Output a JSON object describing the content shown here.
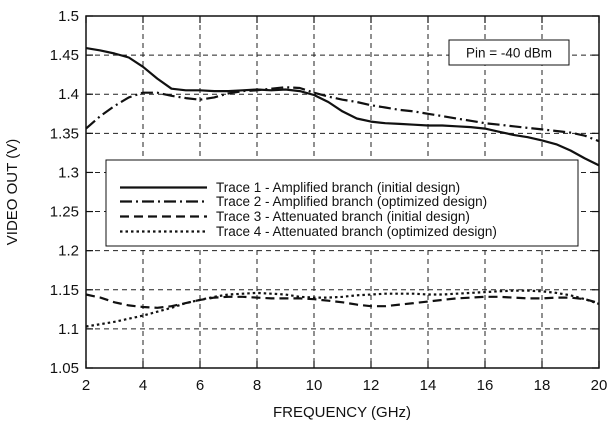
{
  "chart_data": {
    "type": "line",
    "title": "",
    "xlabel": "FREQUENCY (GHz)",
    "ylabel": "VIDEO OUT (V)",
    "xlim": [
      2,
      20
    ],
    "ylim": [
      1.05,
      1.5
    ],
    "xticks": [
      2,
      4,
      6,
      8,
      10,
      12,
      14,
      16,
      18,
      20
    ],
    "yticks": [
      1.05,
      1.1,
      1.15,
      1.2,
      1.25,
      1.3,
      1.35,
      1.4,
      1.45,
      1.5
    ],
    "ytick_labels": [
      "1.05",
      "1.1",
      "1.15",
      "1.2",
      "1.25",
      "1.3",
      "1.35",
      "1.4",
      "1.45",
      "1.5"
    ],
    "grid": "dashed",
    "legend_position": "center-left",
    "annotation": "Pin = -40 dBm",
    "series": [
      {
        "name": "Trace 1 - Amplified branch (initial design)",
        "style": "solid",
        "x": [
          2.0,
          2.5,
          3.0,
          3.5,
          4.0,
          4.5,
          5.0,
          5.5,
          6.0,
          6.5,
          7.0,
          7.5,
          8.0,
          8.5,
          9.0,
          9.5,
          10.0,
          10.5,
          11.0,
          11.5,
          12.0,
          12.5,
          13.0,
          13.5,
          14.0,
          14.5,
          15.0,
          15.5,
          16.0,
          16.5,
          17.0,
          17.5,
          18.0,
          18.5,
          19.0,
          19.5,
          20.0
        ],
        "y": [
          1.459,
          1.456,
          1.452,
          1.447,
          1.435,
          1.42,
          1.407,
          1.405,
          1.405,
          1.404,
          1.404,
          1.405,
          1.406,
          1.405,
          1.406,
          1.404,
          1.399,
          1.39,
          1.378,
          1.369,
          1.365,
          1.363,
          1.362,
          1.361,
          1.36,
          1.36,
          1.359,
          1.358,
          1.356,
          1.352,
          1.348,
          1.345,
          1.341,
          1.336,
          1.328,
          1.318,
          1.309
        ]
      },
      {
        "name": "Trace 2 - Amplified branch (optimized design)",
        "style": "dashdot",
        "x": [
          2.0,
          2.5,
          3.0,
          3.5,
          4.0,
          4.5,
          5.0,
          5.5,
          6.0,
          6.5,
          7.0,
          7.5,
          8.0,
          8.5,
          9.0,
          9.5,
          10.0,
          10.5,
          11.0,
          11.5,
          12.0,
          12.5,
          13.0,
          13.5,
          14.0,
          14.5,
          15.0,
          15.5,
          16.0,
          16.5,
          17.0,
          17.5,
          18.0,
          18.5,
          19.0,
          19.5,
          20.0
        ],
        "y": [
          1.356,
          1.372,
          1.385,
          1.396,
          1.402,
          1.402,
          1.398,
          1.395,
          1.393,
          1.396,
          1.401,
          1.404,
          1.405,
          1.407,
          1.409,
          1.408,
          1.402,
          1.397,
          1.393,
          1.39,
          1.386,
          1.383,
          1.38,
          1.378,
          1.375,
          1.372,
          1.369,
          1.366,
          1.363,
          1.361,
          1.359,
          1.357,
          1.355,
          1.353,
          1.351,
          1.347,
          1.34
        ]
      },
      {
        "name": "Trace 3 - Attenuated branch (initial design)",
        "style": "dashed",
        "x": [
          2.0,
          2.5,
          3.0,
          3.5,
          4.0,
          4.5,
          5.0,
          5.5,
          6.0,
          6.5,
          7.0,
          7.5,
          8.0,
          8.5,
          9.0,
          9.5,
          10.0,
          10.5,
          11.0,
          11.5,
          12.0,
          12.5,
          13.0,
          13.5,
          14.0,
          14.5,
          15.0,
          15.5,
          16.0,
          16.5,
          17.0,
          17.5,
          18.0,
          18.5,
          19.0,
          19.5,
          20.0
        ],
        "y": [
          1.144,
          1.14,
          1.134,
          1.13,
          1.128,
          1.127,
          1.129,
          1.133,
          1.137,
          1.14,
          1.141,
          1.141,
          1.14,
          1.139,
          1.139,
          1.139,
          1.138,
          1.136,
          1.134,
          1.131,
          1.129,
          1.129,
          1.131,
          1.133,
          1.135,
          1.137,
          1.139,
          1.14,
          1.141,
          1.141,
          1.14,
          1.139,
          1.139,
          1.14,
          1.14,
          1.138,
          1.133
        ]
      },
      {
        "name": "Trace 4 - Attenuated branch (optimized design)",
        "style": "dotted",
        "x": [
          2.0,
          2.5,
          3.0,
          3.5,
          4.0,
          4.5,
          5.0,
          5.5,
          6.0,
          6.5,
          7.0,
          7.5,
          8.0,
          8.5,
          9.0,
          9.5,
          10.0,
          10.5,
          11.0,
          11.5,
          12.0,
          12.5,
          13.0,
          13.5,
          14.0,
          14.5,
          15.0,
          15.5,
          16.0,
          16.5,
          17.0,
          17.5,
          18.0,
          18.5,
          19.0,
          19.5,
          20.0
        ],
        "y": [
          1.103,
          1.106,
          1.109,
          1.113,
          1.117,
          1.122,
          1.127,
          1.133,
          1.137,
          1.141,
          1.144,
          1.145,
          1.146,
          1.145,
          1.144,
          1.141,
          1.14,
          1.14,
          1.141,
          1.143,
          1.144,
          1.145,
          1.145,
          1.145,
          1.144,
          1.144,
          1.145,
          1.146,
          1.147,
          1.148,
          1.149,
          1.149,
          1.148,
          1.146,
          1.143,
          1.138,
          1.132
        ]
      }
    ]
  },
  "colors": {
    "line": "#111111",
    "grid": "#222222",
    "background": "#ffffff"
  }
}
